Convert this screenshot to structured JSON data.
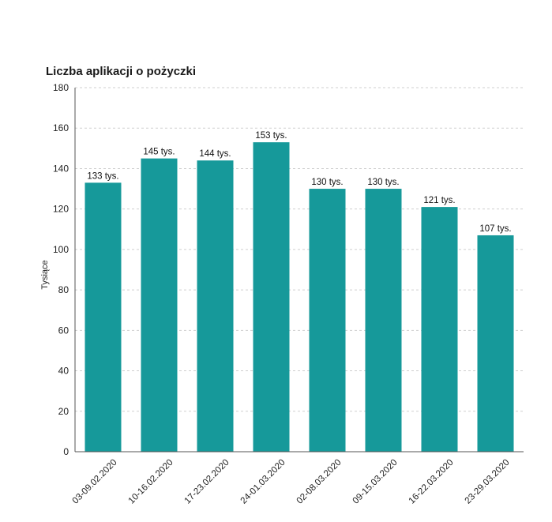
{
  "chart_data": {
    "type": "bar",
    "title": "Liczba aplikacji o pożyczki",
    "xlabel": "",
    "ylabel": "Tysiące",
    "ylim": [
      0,
      180
    ],
    "yticks": [
      0,
      20,
      40,
      60,
      80,
      100,
      120,
      140,
      160,
      180
    ],
    "grid": true,
    "bar_color": "#16999a",
    "categories": [
      "03-09.02.2020",
      "10-16.02.2020",
      "17-23.02.2020",
      "24-01.03.2020",
      "02-08.03.2020",
      "09-15.03.2020",
      "16-22.03.2020",
      "23-29.03.2020"
    ],
    "values": [
      133,
      145,
      144,
      153,
      130,
      130,
      121,
      107
    ],
    "data_labels": [
      "133 tys.",
      "145 tys.",
      "144 tys.",
      "153 tys.",
      "130 tys.",
      "130 tys.",
      "121 tys.",
      "107 tys."
    ]
  }
}
